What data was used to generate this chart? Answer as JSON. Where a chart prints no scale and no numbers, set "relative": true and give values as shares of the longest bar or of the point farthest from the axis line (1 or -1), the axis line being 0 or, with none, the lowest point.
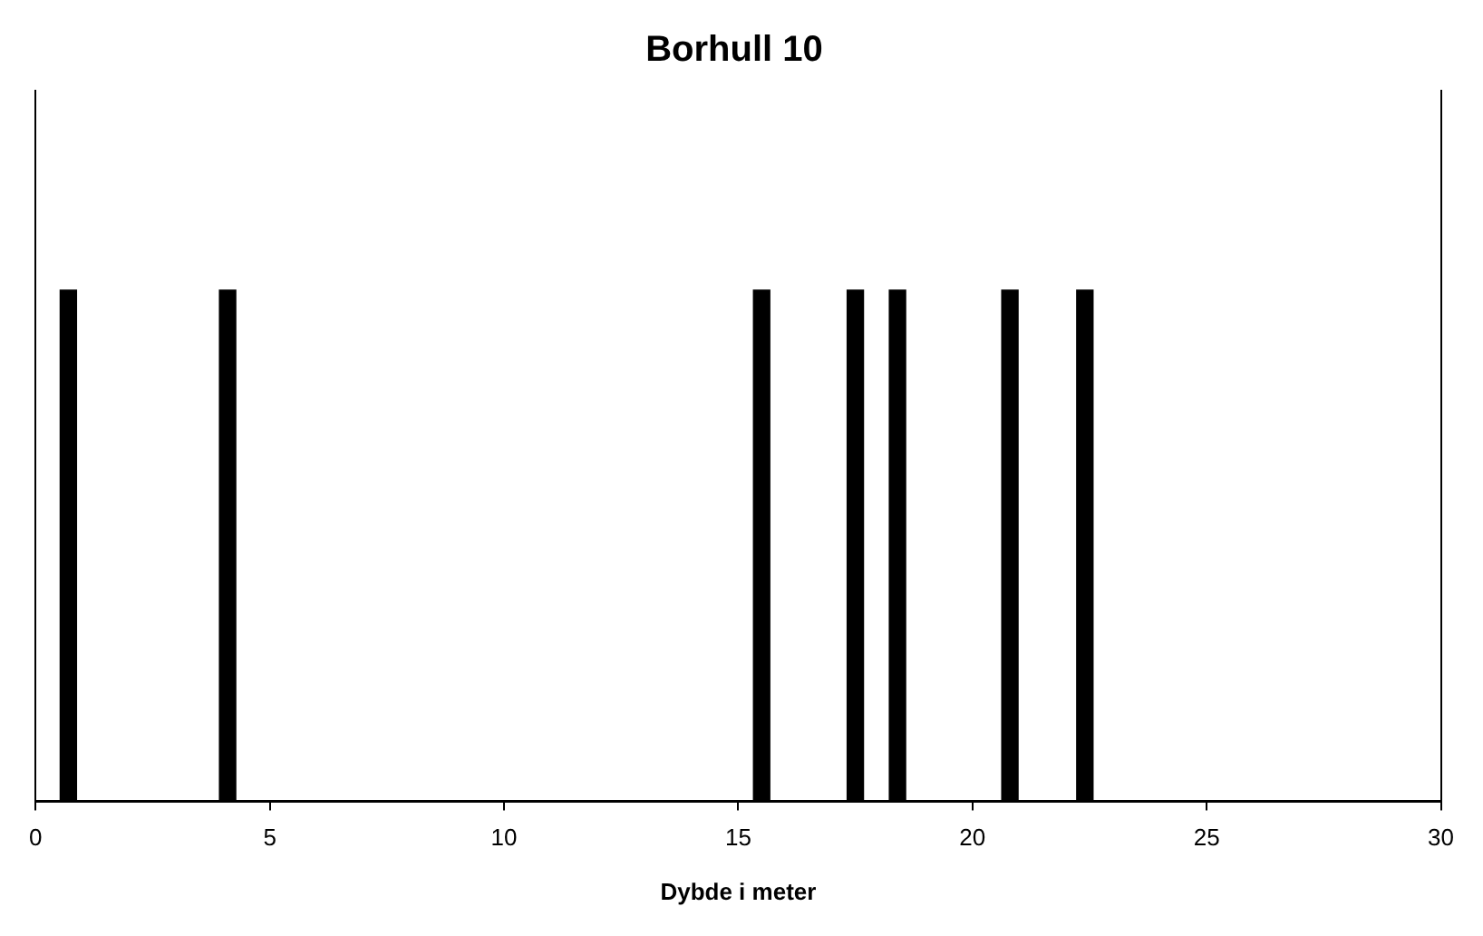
{
  "chart_data": {
    "type": "bar",
    "title": "Borhull 10",
    "xlabel": "Dybde i meter",
    "relative": true,
    "x": [
      0.7,
      4.1,
      15.5,
      17.5,
      18.4,
      20.8,
      22.4
    ],
    "values": [
      1,
      1,
      1,
      1,
      1,
      1,
      1
    ],
    "color": "#000000",
    "xlim": [
      0,
      30
    ],
    "xticks": [
      0,
      5,
      10,
      15,
      20,
      25,
      30
    ],
    "grid": false,
    "legend": false
  }
}
